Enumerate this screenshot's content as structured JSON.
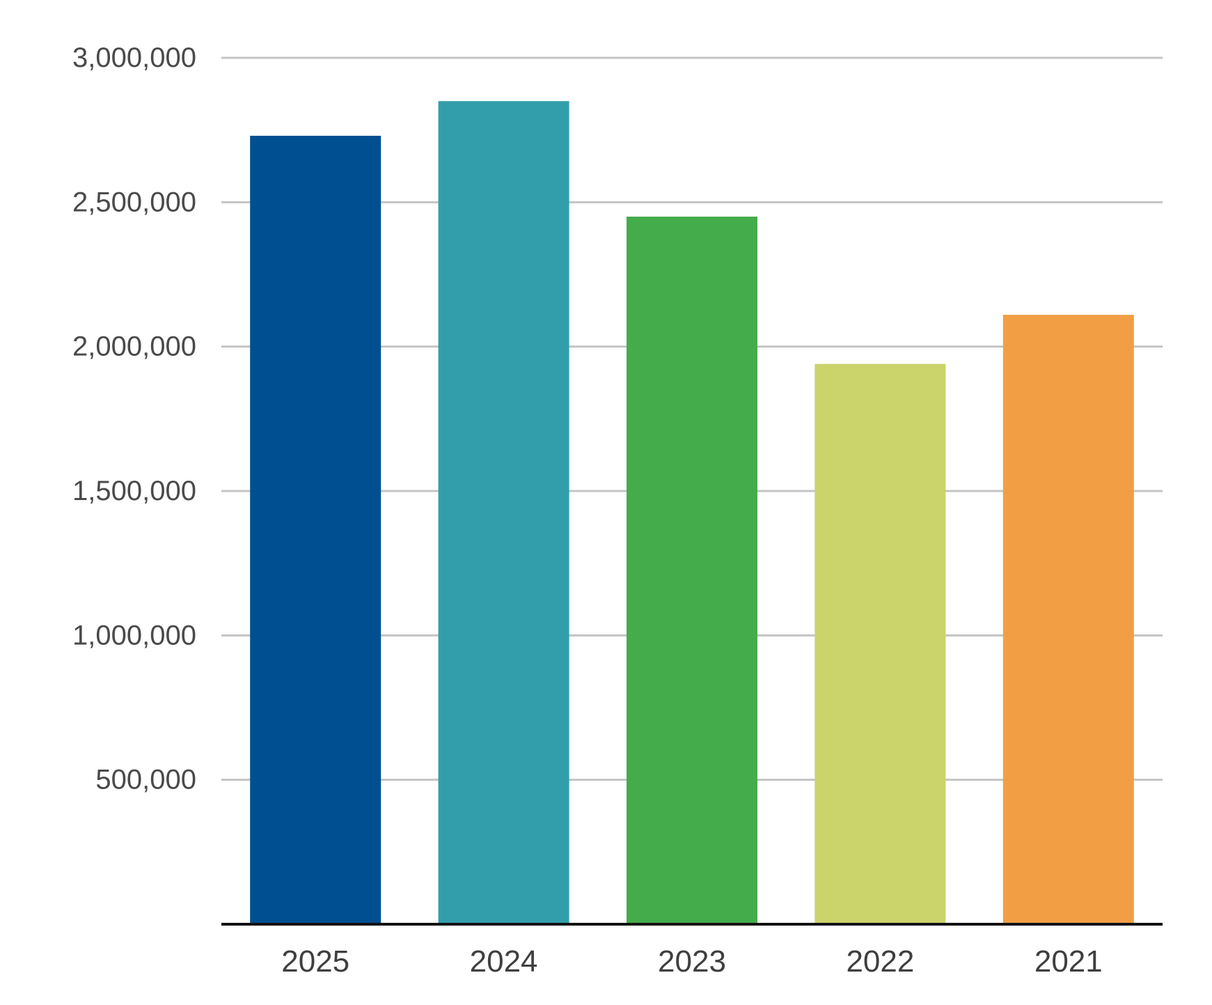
{
  "chart_data": {
    "type": "bar",
    "categories": [
      "2025",
      "2024",
      "2023",
      "2022",
      "2021"
    ],
    "values": [
      2730000,
      2850000,
      2450000,
      1940000,
      2110000
    ],
    "colors": [
      "#004f91",
      "#339eab",
      "#44ac4b",
      "#cbd36b",
      "#f29e45"
    ],
    "ylim": [
      0,
      3000000
    ],
    "yticks": [
      500000,
      1000000,
      1500000,
      2000000,
      2500000,
      3000000
    ],
    "ytick_labels": [
      "500,000",
      "1,000,000",
      "1,500,000",
      "2,000,000",
      "2,500,000",
      "3,000,000"
    ],
    "grid": true,
    "gridline_color": "#c4c4c4",
    "axis_color": "#111111",
    "title": "",
    "xlabel": "",
    "ylabel": ""
  }
}
